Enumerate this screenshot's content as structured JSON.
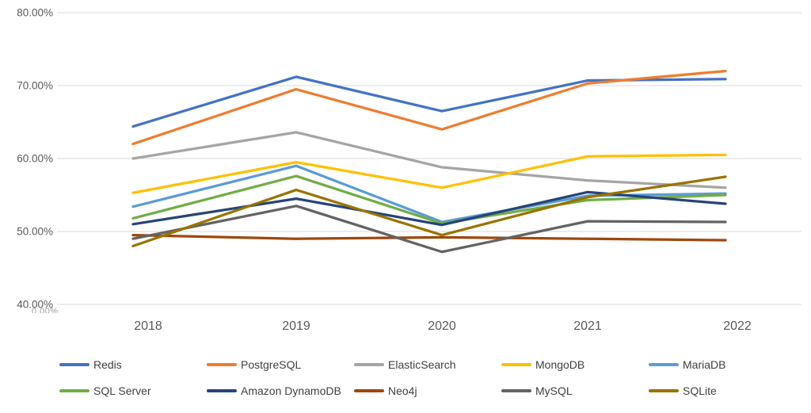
{
  "chart_data": {
    "type": "line",
    "title": "",
    "xlabel": "",
    "ylabel": "",
    "x_categories": [
      "2018",
      "2019",
      "2020",
      "2021",
      "2022"
    ],
    "y_axis": {
      "ticks": [
        "80.00%",
        "70.00%",
        "60.00%",
        "50.00%",
        "40.00%"
      ],
      "tick_values": [
        80,
        70,
        60,
        50,
        40
      ],
      "min": 40,
      "max": 80,
      "unit": "percent"
    },
    "clipped_axis_fragment": "0.00%",
    "grid": "horizontal-only",
    "gridline_color": "#d9d9d9",
    "axis_text_color": "#595959",
    "legend_position": "bottom",
    "series": [
      {
        "name": "Redis",
        "color": "#4472C4",
        "values": [
          64.4,
          71.2,
          66.5,
          70.7,
          70.9
        ]
      },
      {
        "name": "PostgreSQL",
        "color": "#ED7D31",
        "values": [
          62.0,
          69.5,
          64.0,
          70.3,
          72.0
        ]
      },
      {
        "name": "ElasticSearch",
        "color": "#A5A5A5",
        "values": [
          60.0,
          63.6,
          58.8,
          57.0,
          56.0
        ]
      },
      {
        "name": "MongoDB",
        "color": "#FFC000",
        "values": [
          55.3,
          59.5,
          56.0,
          60.3,
          60.5
        ]
      },
      {
        "name": "MariaDB",
        "color": "#5B9BD5",
        "values": [
          53.4,
          59.0,
          51.3,
          54.9,
          55.2
        ]
      },
      {
        "name": "SQL Server",
        "color": "#70AD47",
        "values": [
          51.8,
          57.6,
          51.1,
          54.3,
          55.0
        ]
      },
      {
        "name": "Amazon DynamoDB",
        "color": "#264478",
        "values": [
          51.0,
          54.5,
          50.9,
          55.4,
          53.8
        ]
      },
      {
        "name": "Neo4j",
        "color": "#9E480E",
        "values": [
          49.5,
          49.0,
          49.2,
          49.0,
          48.8
        ]
      },
      {
        "name": "MySQL",
        "color": "#636363",
        "values": [
          49.0,
          53.5,
          47.2,
          51.4,
          51.3
        ]
      },
      {
        "name": "SQLite",
        "color": "#997300",
        "values": [
          48.0,
          55.7,
          49.5,
          54.7,
          57.5
        ]
      }
    ]
  }
}
